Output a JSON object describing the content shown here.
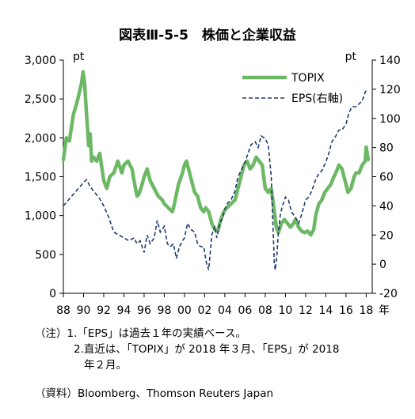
{
  "chart_data": {
    "type": "line",
    "title": "図表Ⅲ-5-5　株価と企業収益",
    "left_unit": "pt",
    "right_unit": "pt",
    "x_tick_labels": [
      "88",
      "90",
      "92",
      "94",
      "96",
      "98",
      "00",
      "02",
      "04",
      "06",
      "08",
      "10",
      "12",
      "14",
      "16",
      "18"
    ],
    "x_axis_suffix": "年",
    "x_range": [
      1988,
      2018.6
    ],
    "left_axis": {
      "range": [
        0,
        3000
      ],
      "ticks": [
        0,
        500,
        1000,
        1500,
        2000,
        2500,
        3000
      ],
      "tick_labels": [
        "0",
        "500",
        "1,000",
        "1,500",
        "2,000",
        "2,500",
        "3,000"
      ]
    },
    "right_axis": {
      "range": [
        -20,
        140
      ],
      "ticks": [
        -20,
        0,
        20,
        40,
        60,
        80,
        100,
        120,
        140
      ],
      "tick_labels": [
        "-20",
        "0",
        "20",
        "40",
        "60",
        "80",
        "100",
        "120",
        "140"
      ]
    },
    "legend_position": "top-right",
    "grid": false,
    "series": [
      {
        "name": "TOPIX",
        "axis": "left",
        "style": "solid",
        "color": "#6db865",
        "x": [
          1988.0,
          1988.3,
          1988.6,
          1989.0,
          1989.4,
          1989.8,
          1989.95,
          1990.1,
          1990.3,
          1990.5,
          1990.65,
          1990.8,
          1991.0,
          1991.3,
          1991.6,
          1992.0,
          1992.3,
          1992.6,
          1993.0,
          1993.4,
          1993.8,
          1994.0,
          1994.4,
          1994.8,
          1995.0,
          1995.3,
          1995.5,
          1995.8,
          1996.0,
          1996.3,
          1996.6,
          1997.0,
          1997.4,
          1997.8,
          1998.0,
          1998.4,
          1998.8,
          1999.0,
          1999.4,
          1999.8,
          2000.0,
          2000.2,
          2000.5,
          2000.8,
          2001.0,
          2001.3,
          2001.6,
          2001.9,
          2002.1,
          2002.4,
          2002.7,
          2003.0,
          2003.3,
          2003.6,
          2003.9,
          2004.2,
          2004.6,
          2005.0,
          2005.3,
          2005.6,
          2005.9,
          2006.2,
          2006.5,
          2006.8,
          2007.1,
          2007.4,
          2007.7,
          2008.0,
          2008.3,
          2008.6,
          2008.9,
          2009.1,
          2009.3,
          2009.6,
          2009.9,
          2010.2,
          2010.5,
          2010.8,
          2011.0,
          2011.3,
          2011.6,
          2011.9,
          2012.2,
          2012.5,
          2012.8,
          2013.0,
          2013.3,
          2013.6,
          2013.9,
          2014.2,
          2014.5,
          2014.8,
          2015.0,
          2015.3,
          2015.6,
          2015.9,
          2016.2,
          2016.5,
          2016.8,
          2017.0,
          2017.3,
          2017.6,
          2017.9,
          2018.0,
          2018.2
        ],
        "y": [
          1720,
          2000,
          1960,
          2300,
          2480,
          2700,
          2850,
          2700,
          2300,
          1900,
          2050,
          1700,
          1750,
          1700,
          1800,
          1450,
          1350,
          1500,
          1550,
          1700,
          1550,
          1650,
          1700,
          1600,
          1450,
          1250,
          1280,
          1400,
          1500,
          1600,
          1450,
          1350,
          1250,
          1200,
          1150,
          1100,
          1050,
          1150,
          1400,
          1550,
          1650,
          1700,
          1550,
          1400,
          1300,
          1250,
          1100,
          1050,
          1100,
          1050,
          900,
          820,
          800,
          950,
          1050,
          1100,
          1150,
          1200,
          1350,
          1500,
          1650,
          1700,
          1600,
          1650,
          1750,
          1700,
          1650,
          1350,
          1300,
          1350,
          1050,
          850,
          780,
          900,
          950,
          900,
          850,
          900,
          950,
          850,
          800,
          780,
          800,
          750,
          820,
          1000,
          1150,
          1200,
          1300,
          1350,
          1400,
          1500,
          1550,
          1650,
          1600,
          1450,
          1300,
          1350,
          1500,
          1550,
          1550,
          1650,
          1700,
          1880,
          1720
        ]
      },
      {
        "name": "EPS(右軸)",
        "axis": "right",
        "style": "dashed",
        "color": "#1f3a6e",
        "x": [
          1988.0,
          1988.5,
          1989.0,
          1989.5,
          1990.0,
          1990.3,
          1990.6,
          1991.0,
          1991.5,
          1992.0,
          1992.5,
          1993.0,
          1993.5,
          1994.0,
          1994.5,
          1995.0,
          1995.3,
          1995.6,
          1996.0,
          1996.3,
          1996.6,
          1997.0,
          1997.3,
          1997.6,
          1998.0,
          1998.3,
          1998.6,
          1998.9,
          1999.2,
          1999.5,
          1999.8,
          2000.0,
          2000.3,
          2000.6,
          2001.0,
          2001.3,
          2001.6,
          2001.9,
          2002.0,
          2002.2,
          2002.4,
          2002.7,
          2003.0,
          2003.2,
          2003.5,
          2003.8,
          2004.0,
          2004.3,
          2004.6,
          2005.0,
          2005.3,
          2005.6,
          2006.0,
          2006.3,
          2006.6,
          2007.0,
          2007.3,
          2007.6,
          2008.0,
          2008.3,
          2008.6,
          2008.9,
          2009.0,
          2009.15,
          2009.3,
          2009.5,
          2009.7,
          2010.0,
          2010.3,
          2010.6,
          2011.0,
          2011.3,
          2011.6,
          2012.0,
          2012.3,
          2012.6,
          2013.0,
          2013.3,
          2013.6,
          2014.0,
          2014.3,
          2014.6,
          2015.0,
          2015.3,
          2015.6,
          2016.0,
          2016.3,
          2016.6,
          2017.0,
          2017.3,
          2017.6,
          2017.9,
          2018.1
        ],
        "y": [
          40,
          44,
          48,
          52,
          56,
          58,
          54,
          50,
          46,
          40,
          32,
          22,
          20,
          18,
          16,
          18,
          14,
          16,
          8,
          20,
          14,
          18,
          30,
          22,
          26,
          14,
          12,
          14,
          4,
          12,
          16,
          18,
          28,
          24,
          22,
          14,
          12,
          12,
          8,
          0,
          -4,
          20,
          26,
          18,
          28,
          32,
          38,
          42,
          44,
          50,
          60,
          64,
          70,
          76,
          82,
          84,
          80,
          88,
          86,
          82,
          60,
          0,
          -4,
          6,
          22,
          34,
          40,
          46,
          44,
          36,
          32,
          28,
          34,
          44,
          46,
          50,
          58,
          62,
          64,
          70,
          76,
          84,
          88,
          92,
          92,
          96,
          104,
          108,
          108,
          110,
          112,
          118,
          120
        ]
      }
    ],
    "notes": [
      "（注）1.「EPS」は過去１年の実績ベース。",
      "2.直近は、「TOPIX」が 2018 年３月、「EPS」が 2018",
      "年２月。"
    ],
    "source": "（資料）Bloomberg、Thomson Reuters Japan"
  }
}
